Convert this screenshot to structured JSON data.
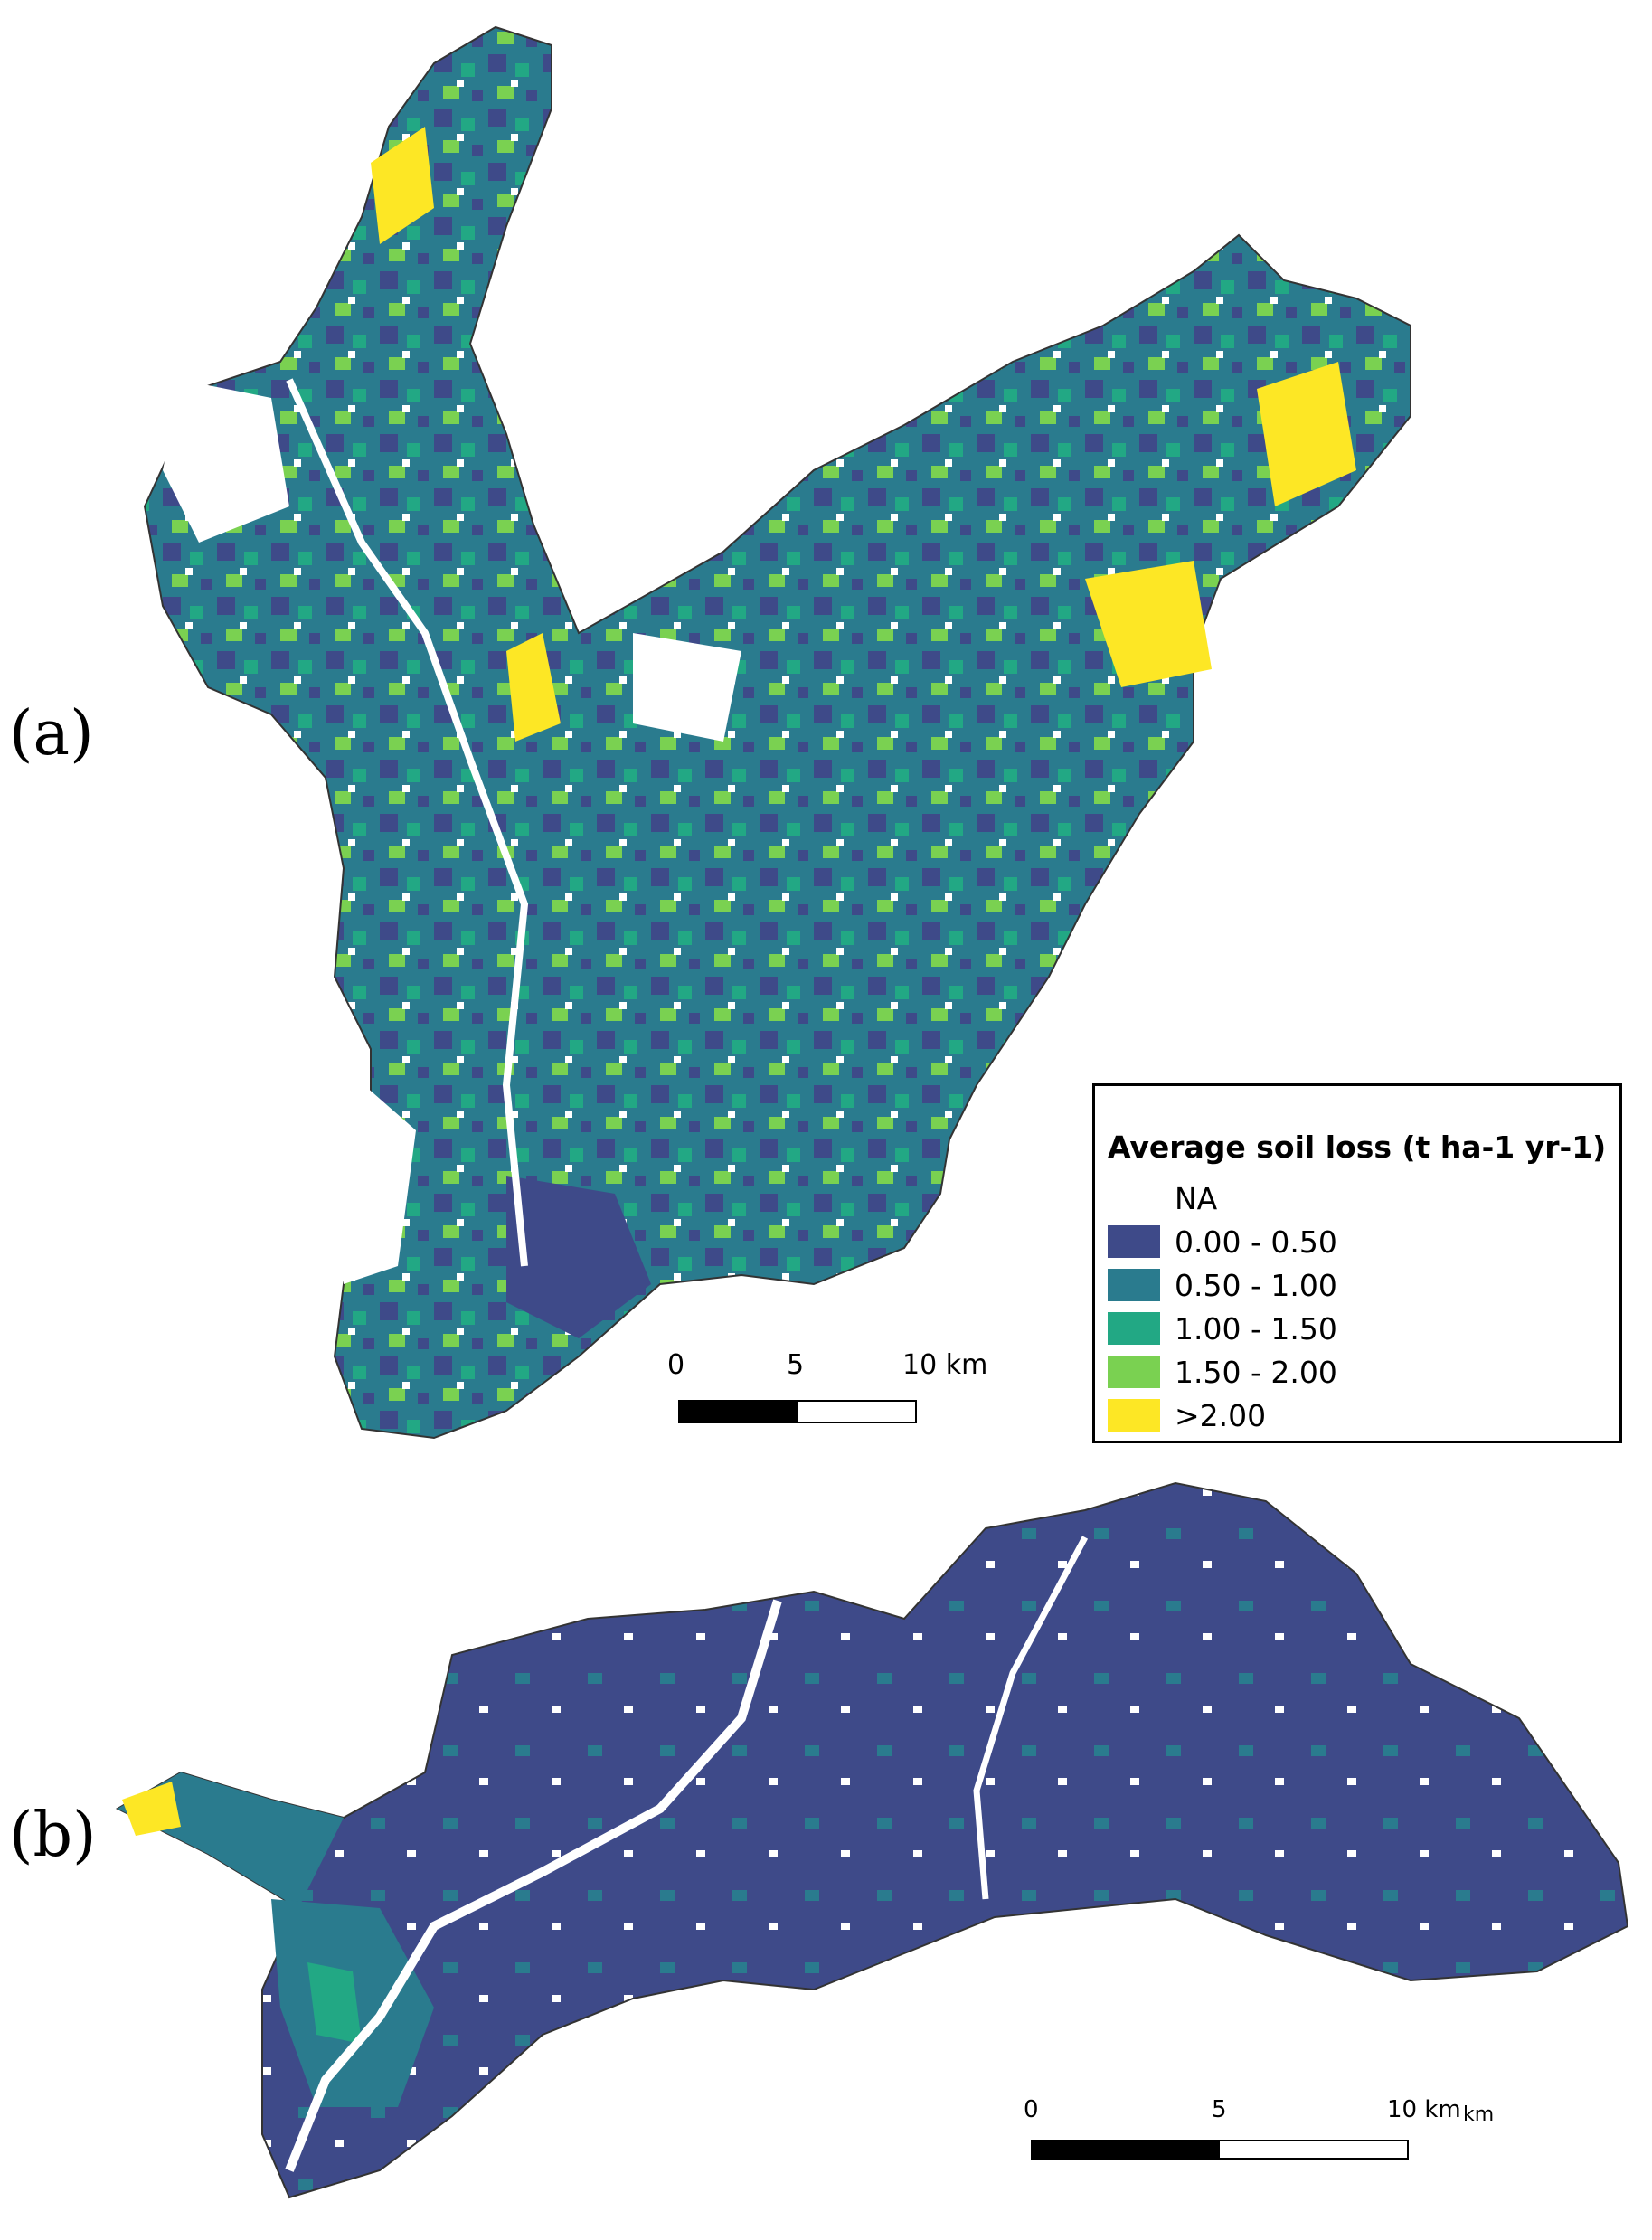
{
  "panels": {
    "a_label": "(a)",
    "b_label": "(b)"
  },
  "legend": {
    "title": "Average soil loss (t ha-1 yr-1)",
    "items": [
      {
        "label": "NA",
        "color": "#ffffff"
      },
      {
        "label": "0.00 - 0.50",
        "color": "#3e4a89"
      },
      {
        "label": "0.50 - 1.00",
        "color": "#2a7b8e"
      },
      {
        "label": "1.00 - 1.50",
        "color": "#22a884"
      },
      {
        "label": "1.50 - 2.00",
        "color": "#7ad151"
      },
      {
        "label": ">2.00",
        "color": "#fde725"
      }
    ]
  },
  "scalebar_a": {
    "tick0": "0",
    "tick1": "5",
    "tick2": "10 km"
  },
  "scalebar_b": {
    "tick0": "0",
    "tick1": "5",
    "tick2": "10 km",
    "unit": "km"
  }
}
